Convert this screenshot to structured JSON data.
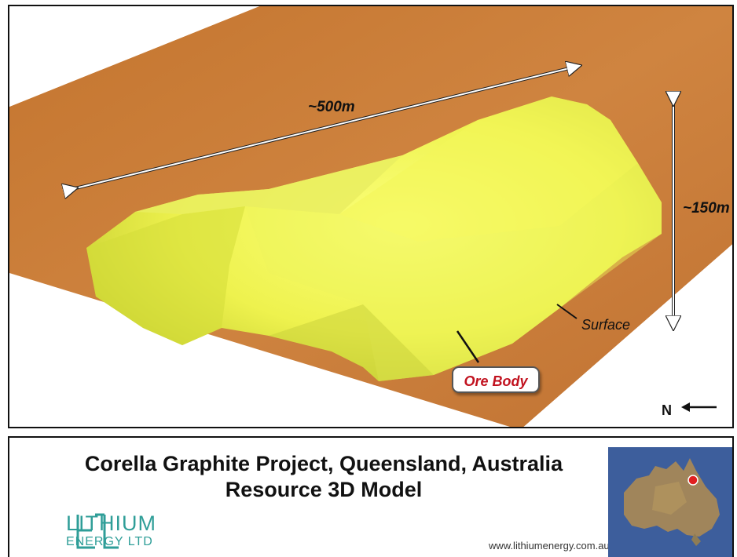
{
  "model": {
    "length_label": "~500m",
    "depth_label": "~150m",
    "surface_label": "Surface",
    "ore_label": "Ore Body",
    "north_label": "N"
  },
  "caption": {
    "title_line1": "Corella Graphite Project, Queensland, Australia",
    "title_line2": "Resource 3D Model",
    "website": "www.lithiumenergy.com.au"
  },
  "logo": {
    "name": "LITHIUM",
    "sub": "ENERGY LTD"
  },
  "colors": {
    "surface": "#c97a35",
    "ore_body": "#e8f04a",
    "ore_label_text": "#c1121f",
    "logo": "#2f9e98",
    "ocean": "#3d5e9c",
    "location_dot": "#e02020"
  }
}
